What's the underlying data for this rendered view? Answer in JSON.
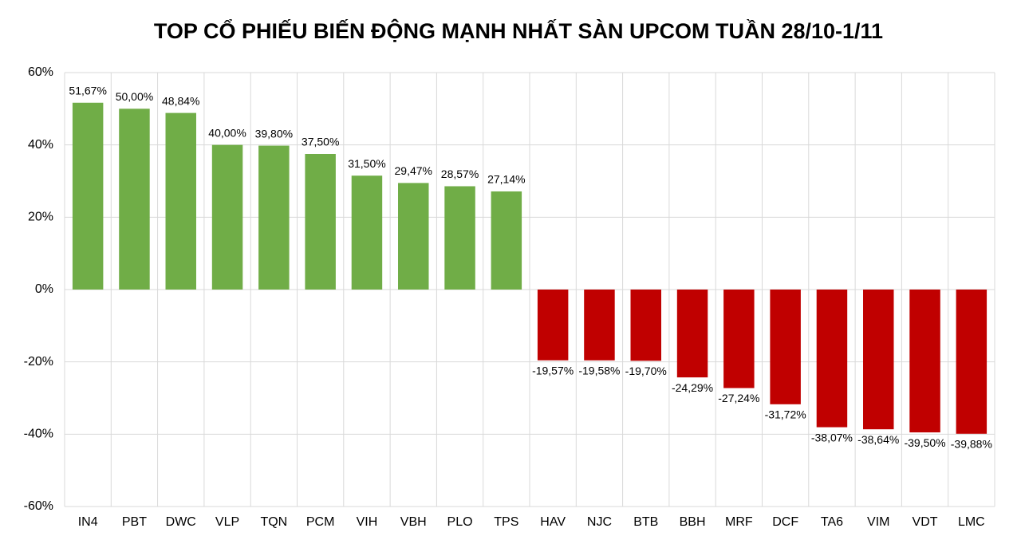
{
  "chart_data": {
    "type": "bar",
    "title": "TOP CỔ PHIẾU BIẾN ĐỘNG MẠNH NHẤT SÀN UPCOM TUẦN 28/10-1/11",
    "categories": [
      "IN4",
      "PBT",
      "DWC",
      "VLP",
      "TQN",
      "PCM",
      "VIH",
      "VBH",
      "PLO",
      "TPS",
      "HAV",
      "NJC",
      "BTB",
      "BBH",
      "MRF",
      "DCF",
      "TA6",
      "VIM",
      "VDT",
      "LMC"
    ],
    "values": [
      51.67,
      50.0,
      48.84,
      40.0,
      39.8,
      37.5,
      31.5,
      29.47,
      28.57,
      27.14,
      -19.57,
      -19.58,
      -19.7,
      -24.29,
      -27.24,
      -31.72,
      -38.07,
      -38.64,
      -39.5,
      -39.88
    ],
    "value_labels": [
      "51,67%",
      "50,00%",
      "48,84%",
      "40,00%",
      "39,80%",
      "37,50%",
      "31,50%",
      "29,47%",
      "28,57%",
      "27,14%",
      "-19,57%",
      "-19,58%",
      "-19,70%",
      "-24,29%",
      "-27,24%",
      "-31,72%",
      "-38,07%",
      "-38,64%",
      "-39,50%",
      "-39,88%"
    ],
    "colors": [
      "#70ad47",
      "#70ad47",
      "#70ad47",
      "#70ad47",
      "#70ad47",
      "#70ad47",
      "#70ad47",
      "#70ad47",
      "#70ad47",
      "#70ad47",
      "#c00000",
      "#c00000",
      "#c00000",
      "#c00000",
      "#c00000",
      "#c00000",
      "#c00000",
      "#c00000",
      "#c00000",
      "#c00000"
    ],
    "ylim": [
      -60,
      60
    ],
    "yticks": [
      {
        "value": -60,
        "label": "-60%"
      },
      {
        "value": -40,
        "label": "-40%"
      },
      {
        "value": -20,
        "label": "-20%"
      },
      {
        "value": 0,
        "label": "0%"
      },
      {
        "value": 20,
        "label": "20%"
      },
      {
        "value": 40,
        "label": "40%"
      },
      {
        "value": 60,
        "label": "60%"
      }
    ],
    "grid": true
  }
}
